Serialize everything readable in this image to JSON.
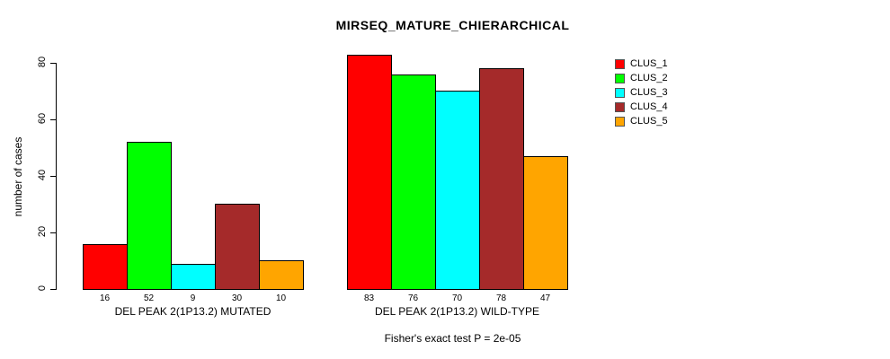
{
  "chart_data": {
    "type": "bar",
    "title": "MIRSEQ_MATURE_CHIERARCHICAL",
    "ylabel": "number of cases",
    "xlabel": "",
    "ylim": [
      0,
      88
    ],
    "yticks": [
      0,
      20,
      40,
      60,
      80
    ],
    "grid": false,
    "legend_position": "top-right",
    "series": [
      {
        "name": "CLUS_1",
        "color": "#FF0000"
      },
      {
        "name": "CLUS_2",
        "color": "#00FF00"
      },
      {
        "name": "CLUS_3",
        "color": "#00FFFF"
      },
      {
        "name": "CLUS_4",
        "color": "#A52A2A"
      },
      {
        "name": "CLUS_5",
        "color": "#FFA500"
      }
    ],
    "groups": [
      {
        "label": "DEL PEAK 2(1P13.2) MUTATED",
        "values": [
          16,
          52,
          9,
          30,
          10
        ]
      },
      {
        "label": "DEL PEAK 2(1P13.2) WILD-TYPE",
        "values": [
          83,
          76,
          70,
          78,
          47
        ]
      }
    ],
    "footnote": "Fisher's exact test P = 2e-05"
  }
}
